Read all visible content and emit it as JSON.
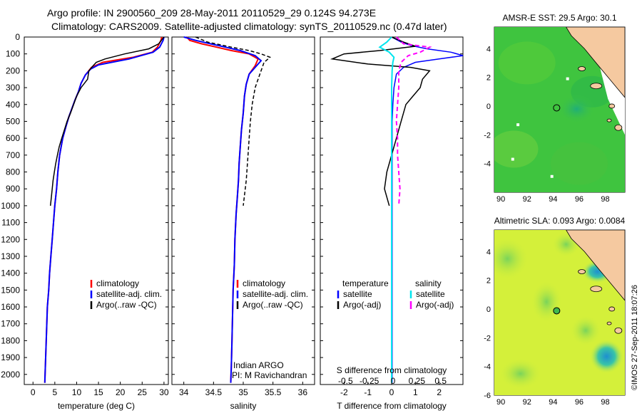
{
  "titles": {
    "line1": "Argo profile: IN 2900560_209 28-May-2011 20110529_29 0.124S 94.273E",
    "line2": "Climatology: CARS2009. Satellite-adjusted climatology: synTS_20110529.nc (0.47d later)"
  },
  "colors": {
    "climatology": "#ff0000",
    "satellite": "#0000ff",
    "argo": "#000000",
    "salinity_satellite": "#00e5ee",
    "salinity_argo": "#ff00ff",
    "land": "#f5c9a0",
    "sst_field": "#3fc43f",
    "sla_field": "#d4f03a"
  },
  "depth_axis": {
    "ticks": [
      0,
      100,
      200,
      300,
      400,
      500,
      600,
      700,
      800,
      900,
      1000,
      1100,
      1200,
      1300,
      1400,
      1500,
      1600,
      1700,
      1800,
      1900,
      2000
    ],
    "ylim": [
      0,
      2060
    ]
  },
  "chart_data": [
    {
      "type": "line",
      "name": "temperature_profile",
      "xlabel": "temperature (deg C)",
      "xlim": [
        -2,
        31
      ],
      "xticks": [
        0,
        5,
        10,
        15,
        20,
        25,
        30
      ],
      "legend": [
        "climatology",
        "satellite-adj. clim.",
        "Argo(..raw -QC)"
      ],
      "legend_placement": "lower-right",
      "series": [
        {
          "name": "climatology",
          "x": [
            29.5,
            29.3,
            28.5,
            27.3,
            23.0,
            16.0,
            13.4,
            12.0,
            11.0,
            10.4,
            9.6,
            8.9,
            8.2,
            7.6,
            6.8,
            6.1,
            5.7,
            5.4,
            5.0,
            4.7,
            4.4,
            4.1,
            3.8,
            3.6,
            3.3,
            3.1,
            2.9,
            2.7
          ],
          "y": [
            0,
            20,
            60,
            90,
            120,
            150,
            180,
            225,
            275,
            325,
            375,
            425,
            475,
            525,
            600,
            700,
            800,
            900,
            1000,
            1100,
            1200,
            1300,
            1400,
            1500,
            1600,
            1750,
            1900,
            2050
          ]
        },
        {
          "name": "satellite-adj. clim.",
          "x": [
            30.0,
            29.8,
            29.0,
            27.5,
            22.0,
            15.0,
            13.2,
            12.0,
            11.0,
            10.4,
            9.6,
            8.9,
            8.2,
            7.6,
            6.8,
            6.1,
            5.7,
            5.4,
            5.0,
            4.7,
            4.4,
            4.1,
            3.8,
            3.6,
            3.3,
            3.1,
            2.9,
            2.7
          ],
          "y": [
            0,
            20,
            60,
            90,
            130,
            165,
            190,
            225,
            275,
            325,
            375,
            425,
            475,
            525,
            600,
            700,
            800,
            900,
            1000,
            1100,
            1200,
            1300,
            1400,
            1500,
            1600,
            1750,
            1900,
            2050
          ]
        },
        {
          "name": "Argo(..raw -QC)",
          "x": [
            30.0,
            29.7,
            28.8,
            26.5,
            21.0,
            16.5,
            14.5,
            13.6,
            12.8,
            12.5,
            11.0,
            10.0,
            9.3,
            8.6,
            7.8,
            7.2,
            6.6,
            6.0,
            5.6,
            5.2,
            4.9,
            4.6,
            4.4,
            4.2,
            4.0
          ],
          "y": [
            0,
            10,
            40,
            70,
            100,
            130,
            150,
            175,
            200,
            250,
            300,
            350,
            400,
            450,
            500,
            550,
            600,
            650,
            700,
            750,
            800,
            850,
            900,
            950,
            1000
          ]
        }
      ]
    },
    {
      "type": "line",
      "name": "salinity_profile",
      "xlabel": "salinity",
      "xlim": [
        33.8,
        36.2
      ],
      "xticks": [
        34,
        34.5,
        35,
        35.5,
        36
      ],
      "legend": [
        "climatology",
        "satellite-adj. clim.",
        "Argo(..raw -QC)"
      ],
      "legend_placement": "lower-right",
      "annotation": [
        "Indian ARGO",
        "PI: M Ravichandran"
      ],
      "series": [
        {
          "name": "climatology",
          "x": [
            34.05,
            34.1,
            34.3,
            34.55,
            34.8,
            35.1,
            35.25,
            35.2,
            35.1,
            35.05,
            35.02,
            35.0,
            34.97,
            34.95,
            34.93,
            34.92,
            34.9,
            34.88,
            34.86,
            34.85,
            34.83,
            34.82,
            34.81,
            34.8,
            34.79
          ],
          "y": [
            0,
            20,
            40,
            60,
            80,
            100,
            130,
            170,
            220,
            280,
            350,
            450,
            550,
            650,
            750,
            850,
            950,
            1050,
            1200,
            1350,
            1500,
            1650,
            1800,
            1950,
            2050
          ]
        },
        {
          "name": "satellite-adj. clim.",
          "x": [
            34.0,
            34.2,
            34.45,
            34.7,
            34.95,
            35.2,
            35.3,
            35.2,
            35.1,
            35.05,
            35.02,
            35.0,
            34.97,
            34.95,
            34.93,
            34.92,
            34.9,
            34.88,
            34.86,
            34.85,
            34.83,
            34.82,
            34.81,
            34.8,
            34.79
          ],
          "y": [
            0,
            20,
            40,
            60,
            80,
            110,
            140,
            180,
            220,
            280,
            350,
            450,
            550,
            650,
            750,
            850,
            950,
            1050,
            1200,
            1350,
            1500,
            1650,
            1800,
            1950,
            2050
          ]
        },
        {
          "name": "Argo(..raw -QC)",
          "x": [
            34.2,
            34.4,
            34.8,
            35.1,
            35.3,
            35.45,
            35.35,
            35.3,
            35.25,
            35.2,
            35.15,
            35.12,
            35.1,
            35.08,
            35.05,
            35.0
          ],
          "y": [
            0,
            30,
            60,
            80,
            100,
            120,
            150,
            200,
            250,
            300,
            400,
            500,
            600,
            700,
            850,
            1000
          ]
        }
      ]
    },
    {
      "type": "line",
      "name": "difference_profile",
      "xlabel": "T difference from climatology",
      "xlim": [
        -3,
        3
      ],
      "xticks": [
        -2,
        -1,
        0,
        1,
        2
      ],
      "x2label": "S difference from climatology",
      "x2ticks": [
        "-0.5",
        "-0.25",
        "0",
        "0.25",
        "0.5"
      ],
      "legend_headers": [
        "temperature",
        "salinity"
      ],
      "legend": [
        "satellite",
        "Argo(-adj)",
        "satellite",
        "Argo(-adj)"
      ],
      "series": [
        {
          "name": "temperature satellite",
          "x": [
            0,
            0.4,
            0.8,
            1.5,
            2.5,
            3.0,
            2.0,
            1.0,
            0.5,
            0.2,
            0.1,
            0.05,
            0.02,
            0.02,
            0.02,
            0.02,
            0.02,
            0.02,
            0.02
          ],
          "y": [
            0,
            30,
            50,
            70,
            90,
            110,
            130,
            150,
            180,
            220,
            300,
            400,
            500,
            700,
            900,
            1200,
            1500,
            1800,
            2050
          ]
        },
        {
          "name": "temperature Argo(-adj)",
          "x": [
            0,
            0.5,
            1.0,
            -0.5,
            -2.0,
            -2.5,
            -1.0,
            0.8,
            1.6,
            1.3,
            1.2,
            0.9,
            0.6,
            0.4,
            0.2,
            0.0,
            -0.2,
            -0.3,
            -0.1
          ],
          "y": [
            0,
            30,
            55,
            80,
            100,
            130,
            160,
            180,
            200,
            250,
            300,
            350,
            400,
            500,
            600,
            700,
            800,
            900,
            1000
          ]
        },
        {
          "name": "salinity satellite",
          "x": [
            0,
            -0.2,
            -0.5,
            -0.1,
            0.1,
            0.05,
            0.02,
            0.0,
            0.0,
            0.0,
            0.0,
            0.0,
            0.0
          ],
          "y": [
            0,
            30,
            60,
            90,
            120,
            150,
            200,
            300,
            500,
            800,
            1200,
            1600,
            2050
          ]
        },
        {
          "name": "salinity Argo(-adj)",
          "x": [
            0.2,
            0.5,
            1.6,
            1.2,
            0.7,
            0.4,
            0.3,
            0.3,
            0.25,
            0.2,
            0.25,
            0.25,
            0.3,
            0.35,
            0.3
          ],
          "y": [
            0,
            40,
            60,
            90,
            110,
            150,
            200,
            300,
            400,
            500,
            600,
            700,
            800,
            900,
            1000
          ]
        }
      ]
    },
    {
      "type": "heatmap",
      "name": "sst_map",
      "title": "AMSR-E SST: 29.5 Argo: 30.1",
      "xticks": [
        90,
        92,
        94,
        96,
        98
      ],
      "yticks": [
        4,
        2,
        0,
        -2,
        -4
      ],
      "xlim": [
        89.5,
        99.5
      ],
      "ylim": [
        -6,
        5.5
      ],
      "argo_position": {
        "lon": 94.273,
        "lat": -0.124
      }
    },
    {
      "type": "heatmap",
      "name": "sla_map",
      "title": "Altimetric SLA: 0.093 Argo: 0.0084",
      "xticks": [
        90,
        92,
        94,
        96,
        98
      ],
      "yticks": [
        4,
        2,
        0,
        -2,
        -4,
        -6
      ],
      "xlim": [
        89.5,
        99.5
      ],
      "ylim": [
        -6,
        5.5
      ],
      "argo_position": {
        "lon": 94.273,
        "lat": -0.124
      }
    }
  ],
  "side_label": "©IMOS 27-Sep-2011 18:07:26"
}
